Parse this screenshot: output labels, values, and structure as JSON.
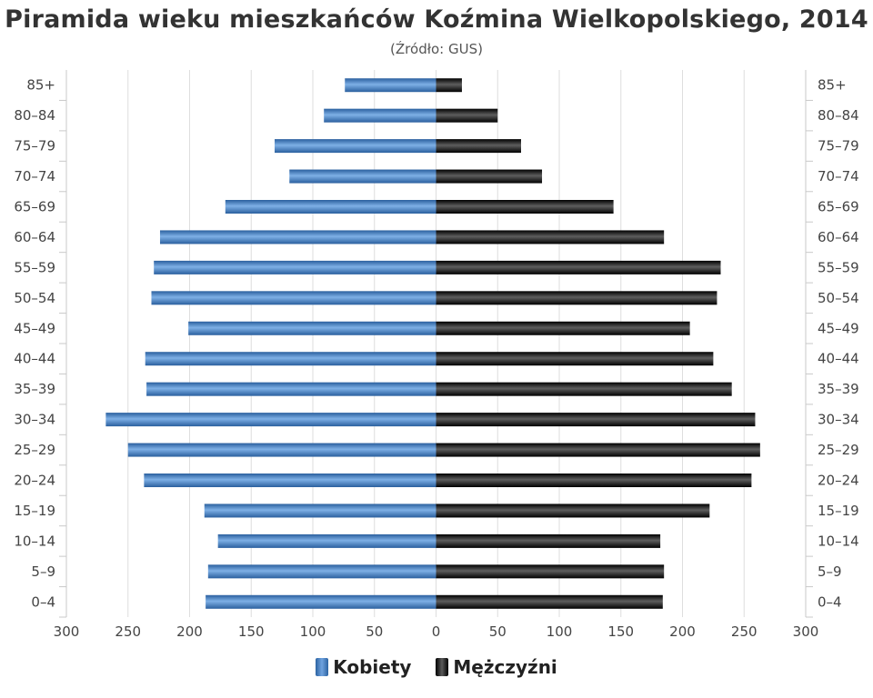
{
  "chart_data": {
    "type": "bar",
    "orientation": "horizontal-pyramid",
    "title": "Piramida wieku mieszkańców Koźmina Wielkopolskiego, 2014",
    "subtitle": "(Źródło: GUS)",
    "categories": [
      "0–4",
      "5–9",
      "10–14",
      "15–19",
      "20–24",
      "25–29",
      "30–34",
      "35–39",
      "40–44",
      "45–49",
      "50–54",
      "55–59",
      "60–64",
      "65–69",
      "70–74",
      "75–79",
      "80–84",
      "85+"
    ],
    "series": [
      {
        "name": "Kobiety",
        "side": "left",
        "color": "#3b78c0",
        "values": [
          187,
          185,
          177,
          188,
          237,
          250,
          268,
          235,
          236,
          201,
          231,
          229,
          224,
          171,
          119,
          131,
          91,
          74
        ]
      },
      {
        "name": "Mężczyźni",
        "side": "right",
        "color": "#111111",
        "values": [
          184,
          185,
          182,
          222,
          256,
          263,
          259,
          240,
          225,
          206,
          228,
          231,
          185,
          144,
          86,
          69,
          50,
          21
        ]
      }
    ],
    "xlim": [
      -300,
      300
    ],
    "x_tick_labels": [
      "300",
      "250",
      "200",
      "150",
      "100",
      "50",
      "0",
      "50",
      "100",
      "150",
      "200",
      "250",
      "300"
    ],
    "grid": "vertical",
    "legend": "bottom-center"
  },
  "legend_items": [
    "Kobiety",
    "Mężczyźni"
  ]
}
